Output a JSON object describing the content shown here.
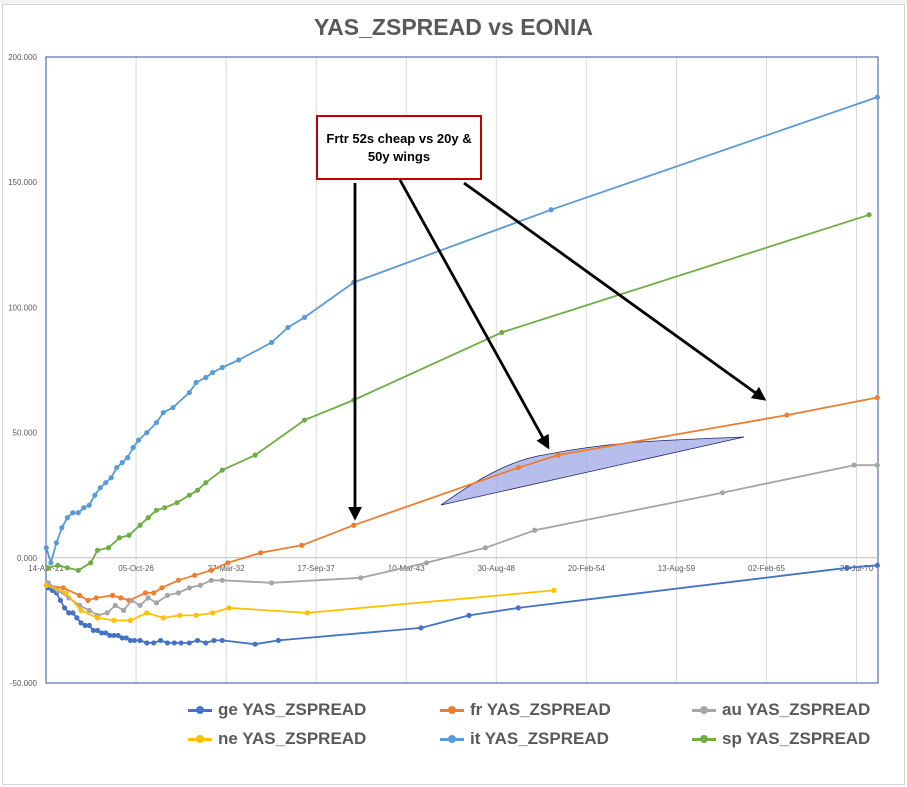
{
  "chart_data": {
    "type": "line",
    "title": "YAS_ZSPREAD vs EONIA",
    "ylim": [
      -50,
      200
    ],
    "y_ticks": [
      "200.000",
      "150.000",
      "100.000",
      "50.000",
      "0.000",
      "-50.000"
    ],
    "y_tick_values": [
      200,
      150,
      100,
      50,
      0,
      -50
    ],
    "xlim": [
      "2021-04-14",
      "2071-11-15"
    ],
    "x_ticks": [
      "14-Apr-21",
      "05-Oct-26",
      "27-Mar-32",
      "17-Sep-37",
      "10-Mar-43",
      "30-Aug-48",
      "20-Feb-54",
      "13-Aug-59",
      "02-Feb-65",
      "26-Jul-70"
    ],
    "x_tick_dates": [
      "2021-04-14",
      "2026-10-05",
      "2032-03-27",
      "2037-09-17",
      "2043-03-10",
      "2048-08-30",
      "2054-02-20",
      "2059-08-13",
      "2065-02-02",
      "2070-07-26"
    ],
    "grid": "vertical",
    "legend_position": "bottom",
    "series": [
      {
        "name": "ge YAS_ZSPREAD",
        "color": "#4472c4",
        "x": [
          "2021-06-01",
          "2021-09-01",
          "2021-12-01",
          "2022-03-01",
          "2022-06-01",
          "2022-09-01",
          "2022-12-01",
          "2023-03-01",
          "2023-06-01",
          "2023-09-01",
          "2023-12-01",
          "2024-03-01",
          "2024-06-01",
          "2024-09-01",
          "2024-12-01",
          "2025-03-01",
          "2025-06-01",
          "2025-09-01",
          "2025-12-01",
          "2026-03-01",
          "2026-06-01",
          "2026-09-01",
          "2027-01-01",
          "2027-06-01",
          "2027-11-01",
          "2028-04-01",
          "2028-09-01",
          "2029-02-01",
          "2029-07-01",
          "2030-01-01",
          "2030-07-01",
          "2031-01-01",
          "2031-07-01",
          "2032-01-01",
          "2034-01-01",
          "2035-06-01",
          "2044-02-01",
          "2047-01-01",
          "2050-01-01",
          "2070-01-01",
          "2071-11-01"
        ],
        "values": [
          -12,
          -13,
          -14,
          -17,
          -20,
          -22,
          -22,
          -24,
          -26,
          -27,
          -27,
          -29,
          -29,
          -30,
          -30,
          -31,
          -31,
          -31,
          -32,
          -32,
          -33,
          -33,
          -33,
          -34,
          -34,
          -33,
          -34,
          -34,
          -34,
          -34,
          -33,
          -34,
          -33,
          -33,
          -34.5,
          -33,
          -28,
          -23,
          -20,
          -4,
          -3
        ]
      },
      {
        "name": "fr YAS_ZSPREAD",
        "color": "#ed7d31",
        "x": [
          "2021-04-20",
          "2022-05-01",
          "2023-05-01",
          "2023-11-01",
          "2024-05-01",
          "2025-05-01",
          "2025-11-01",
          "2026-05-01",
          "2027-05-01",
          "2027-11-01",
          "2028-05-01",
          "2029-05-01",
          "2030-05-01",
          "2031-05-01",
          "2032-05-01",
          "2034-05-01",
          "2036-11-01",
          "2040-01-01",
          "2050-01-01",
          "2052-06-01",
          "2066-05-01",
          "2071-11-01"
        ],
        "values": [
          -11,
          -12,
          -15,
          -17,
          -16,
          -15,
          -16,
          -17,
          -14,
          -14,
          -12,
          -9,
          -7,
          -5,
          -2,
          2,
          5,
          13,
          36,
          41,
          57,
          64
        ]
      },
      {
        "name": "au YAS_ZSPREAD",
        "color": "#a5a5a5",
        "x": [
          "2021-06-01",
          "2022-01-01",
          "2022-09-01",
          "2023-05-01",
          "2023-12-01",
          "2024-06-01",
          "2025-01-01",
          "2025-07-01",
          "2026-01-01",
          "2026-07-01",
          "2027-01-01",
          "2027-07-01",
          "2028-01-01",
          "2028-09-01",
          "2029-05-01",
          "2030-01-01",
          "2030-09-01",
          "2031-05-01",
          "2032-01-01",
          "2035-01-01",
          "2040-06-01",
          "2044-06-01",
          "2048-01-01",
          "2051-01-01",
          "2062-06-01",
          "2070-06-01",
          "2071-11-01"
        ],
        "values": [
          -10,
          -13,
          -16,
          -19,
          -21,
          -23,
          -22,
          -19,
          -21,
          -17,
          -19,
          -16,
          -18,
          -15,
          -14,
          -12,
          -11,
          -9,
          -9,
          -10,
          -8,
          -2,
          4,
          11,
          26,
          37,
          37
        ]
      },
      {
        "name": "ne YAS_ZSPREAD",
        "color": "#ffc000",
        "x": [
          "2021-04-20",
          "2022-07-01",
          "2023-06-01",
          "2024-06-01",
          "2025-06-01",
          "2026-06-01",
          "2027-06-01",
          "2028-06-01",
          "2029-06-01",
          "2030-06-01",
          "2031-06-01",
          "2032-06-01",
          "2037-03-01",
          "2052-03-01"
        ],
        "values": [
          -11,
          -14,
          -21,
          -24,
          -25,
          -25,
          -22,
          -24,
          -23,
          -23,
          -22,
          -20,
          -22,
          -13
        ]
      },
      {
        "name": "it YAS_ZSPREAD",
        "color": "#5b9bd5",
        "x": [
          "2021-04-20",
          "2021-08-01",
          "2021-12-01",
          "2022-04-01",
          "2022-08-01",
          "2022-12-01",
          "2023-04-01",
          "2023-08-01",
          "2023-12-01",
          "2024-04-01",
          "2024-08-01",
          "2024-12-01",
          "2025-04-01",
          "2025-08-01",
          "2025-12-01",
          "2026-04-01",
          "2026-08-01",
          "2026-12-01",
          "2027-06-01",
          "2028-01-01",
          "2028-06-01",
          "2029-01-01",
          "2030-01-01",
          "2030-06-01",
          "2031-01-01",
          "2031-06-01",
          "2032-01-01",
          "2033-01-01",
          "2035-01-01",
          "2036-01-01",
          "2037-01-01",
          "2040-01-01",
          "2052-01-01",
          "2071-11-01"
        ],
        "values": [
          4,
          -2,
          6,
          12,
          16,
          18,
          18,
          20,
          21,
          25,
          28,
          30,
          32,
          36,
          38,
          40,
          44,
          47,
          50,
          54,
          58,
          60,
          66,
          70,
          72,
          74,
          76,
          79,
          86,
          92,
          96,
          110,
          139,
          184
        ]
      },
      {
        "name": "sp YAS_ZSPREAD",
        "color": "#70ad47",
        "x": [
          "2021-06-01",
          "2022-01-01",
          "2022-08-01",
          "2023-04-01",
          "2024-01-01",
          "2024-06-01",
          "2025-02-01",
          "2025-10-01",
          "2026-05-01",
          "2027-01-01",
          "2027-07-01",
          "2028-01-01",
          "2028-07-01",
          "2029-04-01",
          "2030-01-01",
          "2030-07-01",
          "2031-01-01",
          "2032-01-01",
          "2034-01-01",
          "2037-01-01",
          "2040-01-01",
          "2049-01-01",
          "2071-05-01"
        ],
        "values": [
          -4,
          -3,
          -4,
          -5,
          -2,
          3,
          4,
          8,
          9,
          13,
          16,
          19,
          20,
          22,
          25,
          27,
          30,
          35,
          41,
          55,
          63,
          90,
          137
        ]
      }
    ]
  },
  "annotation": {
    "text": "Frtr 52s cheap vs 20y & 50y wings"
  },
  "legend": {
    "items": [
      {
        "label": "ge YAS_ZSPREAD",
        "color": "#4472c4"
      },
      {
        "label": "fr YAS_ZSPREAD",
        "color": "#ed7d31"
      },
      {
        "label": "au YAS_ZSPREAD",
        "color": "#a5a5a5"
      },
      {
        "label": "ne YAS_ZSPREAD",
        "color": "#ffc000"
      },
      {
        "label": "it YAS_ZSPREAD",
        "color": "#5b9bd5"
      },
      {
        "label": "sp YAS_ZSPREAD",
        "color": "#70ad47"
      }
    ]
  }
}
